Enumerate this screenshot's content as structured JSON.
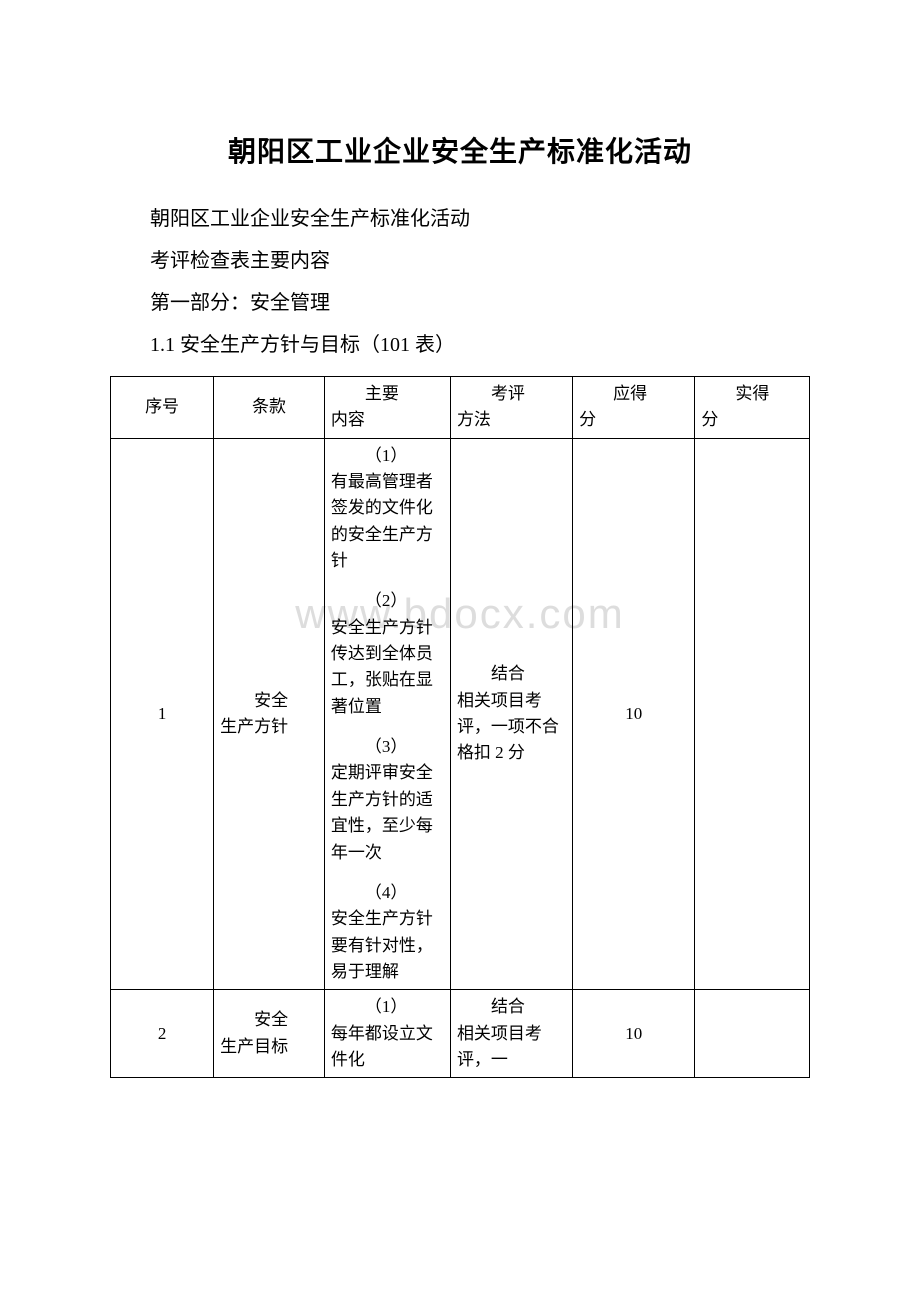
{
  "watermark": "www.bdocx.com",
  "title": "朝阳区工业企业安全生产标准化活动",
  "paragraphs": [
    "朝阳区工业企业安全生产标准化活动",
    "考评检查表主要内容",
    "第一部分：安全管理",
    "1.1 安全生产方针与目标（101 表）"
  ],
  "table": {
    "type": "table",
    "background_color": "#ffffff",
    "border_color": "#000000",
    "font_size": 17,
    "columns": [
      {
        "label": "序号",
        "align": "center"
      },
      {
        "label": "条款",
        "align": "left"
      },
      {
        "label": "主要内容",
        "align": "left"
      },
      {
        "label": "考评方法",
        "align": "left"
      },
      {
        "label": "应得分",
        "align": "center"
      },
      {
        "label": "实得分",
        "align": "left"
      }
    ],
    "header": {
      "seq": "序号",
      "clause": "条款",
      "main_lead": "主要",
      "main_rest": "内容",
      "method_lead": "考评",
      "method_rest": "方法",
      "expected_lead": "应得",
      "expected_rest": "分",
      "actual_lead": "实得",
      "actual_rest": "分"
    },
    "rows": [
      {
        "seq": "1",
        "clause_lead": "安全",
        "clause_rest": "生产方针",
        "items": [
          {
            "lead": "（1）",
            "text": "有最高管理者签发的文件化的安全生产方针"
          },
          {
            "lead": "（2）",
            "text": "安全生产方针传达到全体员工，张贴在显著位置"
          },
          {
            "lead": "（3）",
            "text": "定期评审安全生产方针的适宜性，至少每年一次"
          },
          {
            "lead": "（4）",
            "text": "安全生产方针要有针对性，易于理解"
          }
        ],
        "method_lead": "结合",
        "method_rest": "相关项目考评，一项不合格扣 2 分",
        "expected": "10",
        "actual": ""
      },
      {
        "seq": "2",
        "clause_lead": "安全",
        "clause_rest": "生产目标",
        "items": [
          {
            "lead": "（1）",
            "text": "每年都设立文件化"
          }
        ],
        "method_lead": "结合",
        "method_rest": "相关项目考评，一",
        "expected": "10",
        "actual": ""
      }
    ]
  }
}
